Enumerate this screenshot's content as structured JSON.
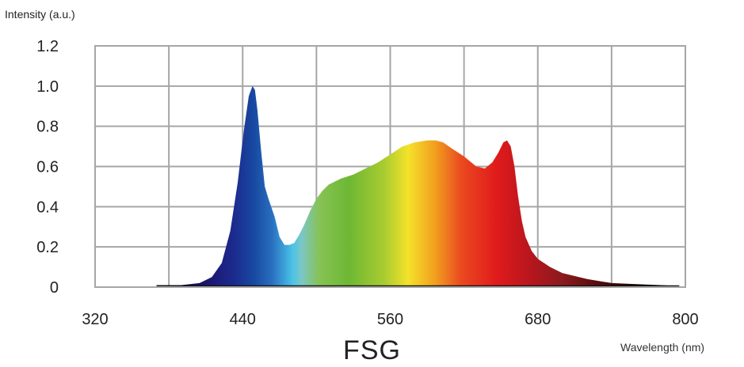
{
  "chart_data": {
    "type": "area",
    "title": "FSG",
    "xlabel": "Wavelength (nm)",
    "ylabel": "Intensity (a.u.)",
    "xlim": [
      320,
      800
    ],
    "ylim": [
      0,
      1.2
    ],
    "x_ticks": [
      "320",
      "440",
      "560",
      "680",
      "800"
    ],
    "y_ticks": [
      "0",
      "0.2",
      "0.4",
      "0.6",
      "0.8",
      "1.0",
      "1.2"
    ],
    "grid": true,
    "series": [
      {
        "x": [
          370,
          390,
          405,
          415,
          423,
          430,
          436,
          441,
          445,
          448,
          450,
          452,
          455,
          458,
          461,
          466,
          470,
          474,
          478,
          482,
          486,
          490,
          495,
          500,
          505,
          510,
          520,
          530,
          540,
          550,
          560,
          570,
          580,
          590,
          597,
          603,
          610,
          620,
          630,
          637,
          643,
          648,
          652,
          655,
          658,
          661,
          664,
          667,
          670,
          675,
          680,
          690,
          700,
          720,
          740,
          760,
          780,
          795
        ],
        "y": [
          0.01,
          0.01,
          0.02,
          0.05,
          0.12,
          0.28,
          0.52,
          0.78,
          0.95,
          1.0,
          0.98,
          0.88,
          0.68,
          0.5,
          0.44,
          0.35,
          0.25,
          0.21,
          0.21,
          0.22,
          0.26,
          0.31,
          0.38,
          0.44,
          0.48,
          0.51,
          0.54,
          0.56,
          0.59,
          0.62,
          0.66,
          0.7,
          0.72,
          0.73,
          0.73,
          0.72,
          0.69,
          0.65,
          0.6,
          0.59,
          0.62,
          0.67,
          0.72,
          0.73,
          0.7,
          0.6,
          0.45,
          0.33,
          0.25,
          0.18,
          0.14,
          0.1,
          0.07,
          0.04,
          0.02,
          0.015,
          0.01,
          0.005
        ]
      }
    ]
  }
}
